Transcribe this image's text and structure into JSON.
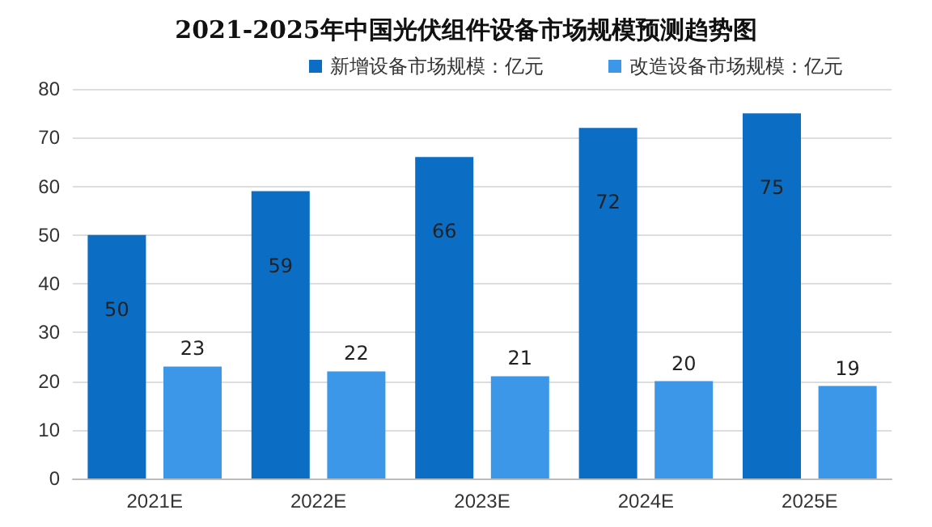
{
  "chart_data": {
    "type": "bar",
    "title": "2021-2025年中国光伏组件设备市场规模预测趋势图",
    "categories": [
      "2021E",
      "2022E",
      "2023E",
      "2024E",
      "2025E"
    ],
    "series": [
      {
        "name": "新增设备市场规模：亿元",
        "color": "#0b6dc4",
        "values": [
          50,
          59,
          66,
          72,
          75
        ]
      },
      {
        "name": "改造设备市场规模：亿元",
        "color": "#3d97e8",
        "values": [
          23,
          22,
          21,
          20,
          19
        ]
      }
    ],
    "ylim": [
      0,
      80
    ],
    "yticks": [
      0,
      10,
      20,
      30,
      40,
      50,
      60,
      70,
      80
    ],
    "grid": "y",
    "legend": "top right",
    "data_labels": true
  }
}
